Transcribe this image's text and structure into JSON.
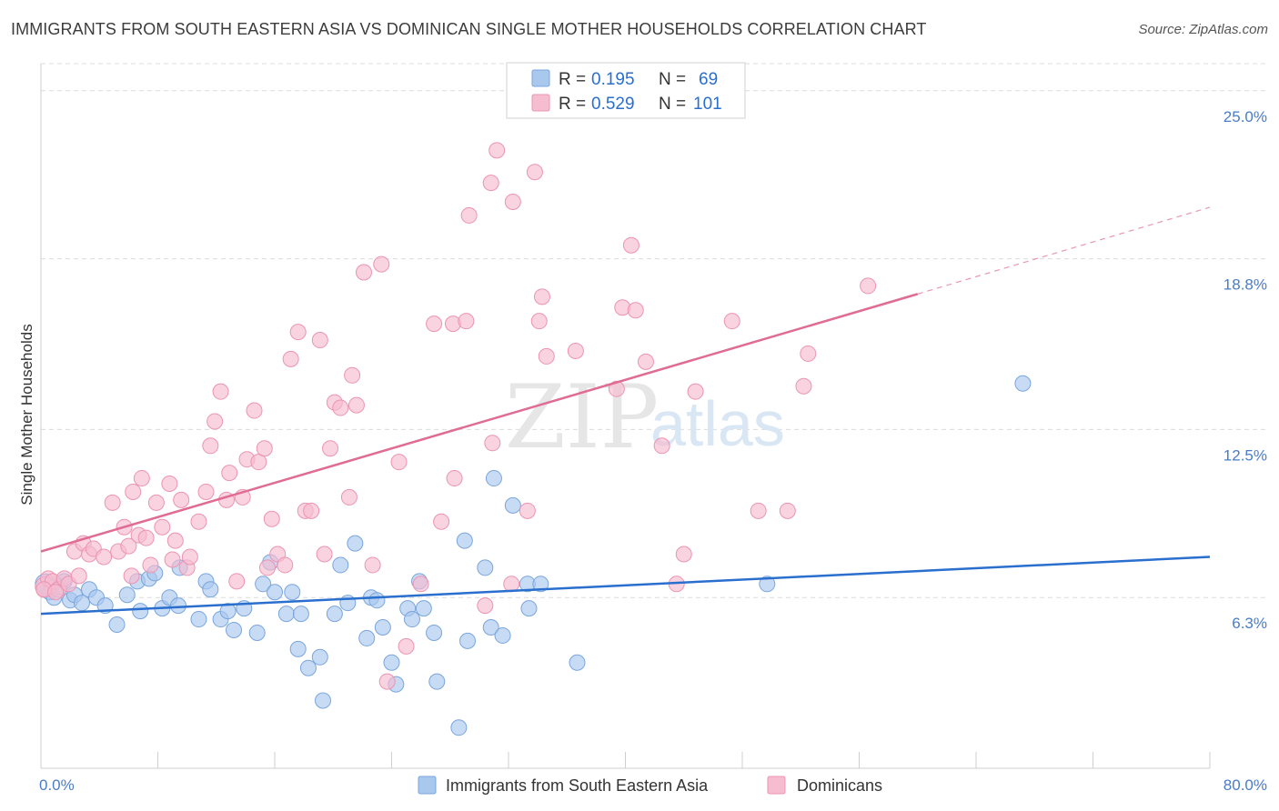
{
  "title": "IMMIGRANTS FROM SOUTH EASTERN ASIA VS DOMINICAN SINGLE MOTHER HOUSEHOLDS CORRELATION CHART",
  "source": "Source: ZipAtlas.com",
  "watermark": {
    "part1": "ZIP",
    "part2": "atlas"
  },
  "colors": {
    "blue_fill": "#a9c8ee",
    "blue_stroke": "#7aa6dc",
    "blue_line": "#2a6fce",
    "pink_fill": "#f6bcd0",
    "pink_stroke": "#ec94b2",
    "pink_line": "#e06b94",
    "axis_text": "#4a7cc7",
    "grid": "#dcdcdc"
  },
  "legend": {
    "rows": [
      {
        "r_label": "R =",
        "r_value": "0.195",
        "n_label": "N =",
        "n_value": "69"
      },
      {
        "r_label": "R =",
        "r_value": "0.529",
        "n_label": "N =",
        "n_value": "101"
      }
    ]
  },
  "bottom_legend": [
    "Immigrants from South Eastern Asia",
    "Dominicans"
  ],
  "chart_data": {
    "type": "scatter",
    "xlabel": "",
    "ylabel": "Single Mother Households",
    "x_tick_labels": [
      "0.0%",
      "80.0%"
    ],
    "y_tick_labels": [
      "6.3%",
      "12.5%",
      "18.8%",
      "25.0%"
    ],
    "y_ticks": [
      6.3,
      12.5,
      18.8,
      25.0
    ],
    "xlim": [
      0,
      80
    ],
    "ylim": [
      0,
      26
    ],
    "grid": true,
    "legend_position": "top-center",
    "series": [
      {
        "name": "Immigrants from South Eastern Asia",
        "trend": {
          "x": [
            0,
            80
          ],
          "y": [
            5.7,
            7.8
          ]
        },
        "points": [
          [
            0.3,
            6.8
          ],
          [
            0.6,
            6.5
          ],
          [
            0.9,
            6.3
          ],
          [
            1.3,
            6.7
          ],
          [
            1.6,
            6.9
          ],
          [
            2.0,
            6.2
          ],
          [
            2.3,
            6.4
          ],
          [
            2.8,
            6.1
          ],
          [
            3.3,
            6.6
          ],
          [
            3.8,
            6.3
          ],
          [
            4.4,
            6.0
          ],
          [
            5.2,
            5.3
          ],
          [
            5.9,
            6.4
          ],
          [
            6.6,
            6.9
          ],
          [
            6.8,
            5.8
          ],
          [
            7.4,
            7.0
          ],
          [
            7.8,
            7.2
          ],
          [
            8.3,
            5.9
          ],
          [
            8.8,
            6.3
          ],
          [
            9.5,
            7.4
          ],
          [
            9.4,
            6.0
          ],
          [
            10.8,
            5.5
          ],
          [
            11.3,
            6.9
          ],
          [
            11.6,
            6.6
          ],
          [
            12.3,
            5.5
          ],
          [
            12.8,
            5.8
          ],
          [
            13.2,
            5.1
          ],
          [
            13.9,
            5.9
          ],
          [
            14.8,
            5.0
          ],
          [
            15.2,
            6.8
          ],
          [
            15.7,
            7.6
          ],
          [
            16.0,
            6.5
          ],
          [
            16.8,
            5.7
          ],
          [
            17.2,
            6.5
          ],
          [
            17.8,
            5.7
          ],
          [
            17.6,
            4.4
          ],
          [
            18.3,
            3.7
          ],
          [
            19.1,
            4.1
          ],
          [
            19.3,
            2.5
          ],
          [
            20.1,
            5.7
          ],
          [
            20.5,
            7.5
          ],
          [
            21.0,
            6.1
          ],
          [
            21.5,
            8.3
          ],
          [
            22.3,
            4.8
          ],
          [
            22.6,
            6.3
          ],
          [
            23.0,
            6.2
          ],
          [
            23.4,
            5.2
          ],
          [
            24.0,
            3.9
          ],
          [
            24.3,
            3.1
          ],
          [
            25.1,
            5.9
          ],
          [
            25.4,
            5.5
          ],
          [
            25.9,
            6.9
          ],
          [
            26.2,
            5.9
          ],
          [
            26.9,
            5.0
          ],
          [
            27.1,
            3.2
          ],
          [
            28.6,
            1.5
          ],
          [
            29.0,
            8.4
          ],
          [
            29.2,
            4.7
          ],
          [
            30.4,
            7.4
          ],
          [
            30.8,
            5.2
          ],
          [
            31.6,
            4.9
          ],
          [
            31.0,
            10.7
          ],
          [
            32.3,
            9.7
          ],
          [
            33.3,
            6.8
          ],
          [
            34.2,
            6.8
          ],
          [
            33.4,
            5.9
          ],
          [
            36.7,
            3.9
          ],
          [
            49.7,
            6.8
          ],
          [
            67.2,
            14.2
          ]
        ]
      },
      {
        "name": "Dominicans",
        "trend": {
          "x": [
            0,
            60
          ],
          "y": [
            8.0,
            17.5
          ]
        },
        "trend_dashed": {
          "x": [
            60,
            80
          ],
          "y": [
            17.5,
            20.7
          ]
        },
        "points": [
          [
            0.3,
            6.7
          ],
          [
            0.5,
            7.0
          ],
          [
            0.8,
            6.9
          ],
          [
            1.2,
            6.6
          ],
          [
            1.6,
            7.0
          ],
          [
            1.9,
            6.8
          ],
          [
            2.3,
            8.0
          ],
          [
            2.6,
            7.1
          ],
          [
            2.9,
            8.3
          ],
          [
            3.3,
            7.9
          ],
          [
            3.6,
            8.1
          ],
          [
            4.3,
            7.8
          ],
          [
            4.9,
            9.8
          ],
          [
            5.3,
            8.0
          ],
          [
            5.7,
            8.9
          ],
          [
            6.0,
            8.2
          ],
          [
            6.2,
            7.1
          ],
          [
            6.3,
            10.2
          ],
          [
            6.7,
            8.6
          ],
          [
            6.9,
            10.7
          ],
          [
            7.2,
            8.5
          ],
          [
            7.5,
            7.5
          ],
          [
            7.9,
            9.8
          ],
          [
            8.3,
            8.9
          ],
          [
            8.8,
            10.5
          ],
          [
            9.0,
            7.7
          ],
          [
            9.2,
            8.4
          ],
          [
            9.6,
            9.9
          ],
          [
            10.0,
            7.4
          ],
          [
            10.2,
            7.8
          ],
          [
            10.8,
            9.1
          ],
          [
            11.3,
            10.2
          ],
          [
            11.6,
            11.9
          ],
          [
            11.9,
            12.8
          ],
          [
            12.3,
            13.9
          ],
          [
            12.7,
            9.9
          ],
          [
            12.9,
            10.9
          ],
          [
            13.4,
            6.9
          ],
          [
            13.8,
            10.0
          ],
          [
            14.1,
            11.4
          ],
          [
            14.6,
            13.2
          ],
          [
            14.9,
            11.3
          ],
          [
            15.3,
            11.8
          ],
          [
            15.5,
            7.4
          ],
          [
            15.8,
            9.2
          ],
          [
            16.2,
            7.9
          ],
          [
            16.7,
            7.5
          ],
          [
            17.1,
            15.1
          ],
          [
            17.6,
            16.1
          ],
          [
            18.1,
            9.5
          ],
          [
            18.5,
            9.5
          ],
          [
            19.1,
            15.8
          ],
          [
            19.4,
            7.9
          ],
          [
            19.8,
            11.8
          ],
          [
            20.1,
            13.5
          ],
          [
            20.5,
            13.3
          ],
          [
            21.1,
            10.0
          ],
          [
            21.3,
            14.5
          ],
          [
            21.6,
            13.4
          ],
          [
            22.1,
            18.3
          ],
          [
            22.7,
            7.5
          ],
          [
            23.3,
            18.6
          ],
          [
            23.7,
            3.2
          ],
          [
            24.5,
            11.3
          ],
          [
            25.0,
            4.5
          ],
          [
            26.0,
            6.8
          ],
          [
            26.9,
            16.4
          ],
          [
            27.4,
            9.1
          ],
          [
            28.2,
            16.4
          ],
          [
            28.3,
            10.7
          ],
          [
            29.1,
            16.5
          ],
          [
            29.3,
            20.4
          ],
          [
            30.4,
            6.0
          ],
          [
            30.8,
            21.6
          ],
          [
            30.9,
            12.0
          ],
          [
            31.2,
            22.8
          ],
          [
            32.2,
            6.8
          ],
          [
            32.3,
            20.9
          ],
          [
            33.3,
            9.5
          ],
          [
            33.8,
            22.0
          ],
          [
            34.1,
            16.5
          ],
          [
            34.3,
            17.4
          ],
          [
            34.6,
            15.2
          ],
          [
            36.6,
            15.4
          ],
          [
            39.4,
            14.0
          ],
          [
            39.8,
            17.0
          ],
          [
            40.4,
            19.3
          ],
          [
            40.7,
            16.9
          ],
          [
            41.4,
            15.0
          ],
          [
            42.5,
            11.9
          ],
          [
            43.5,
            6.8
          ],
          [
            44.0,
            7.9
          ],
          [
            44.8,
            13.9
          ],
          [
            47.3,
            16.5
          ],
          [
            49.1,
            9.5
          ],
          [
            51.1,
            9.5
          ],
          [
            52.2,
            14.1
          ],
          [
            52.5,
            15.3
          ],
          [
            56.6,
            17.8
          ],
          [
            0.2,
            6.6
          ],
          [
            1.0,
            6.5
          ]
        ]
      }
    ]
  }
}
